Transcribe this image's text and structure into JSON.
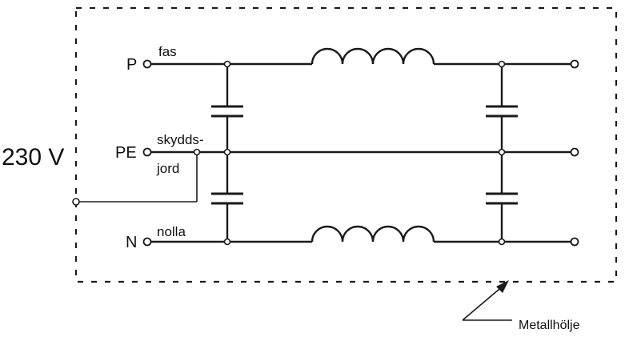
{
  "labels": {
    "voltage": "230 V",
    "terminal_p": "P",
    "terminal_pe": "PE",
    "terminal_n": "N",
    "wire_phase": "fas",
    "wire_earth_line1": "skydds-",
    "wire_earth_line2": "jord",
    "wire_neutral": "nolla",
    "enclosure": "Metallhölje"
  }
}
